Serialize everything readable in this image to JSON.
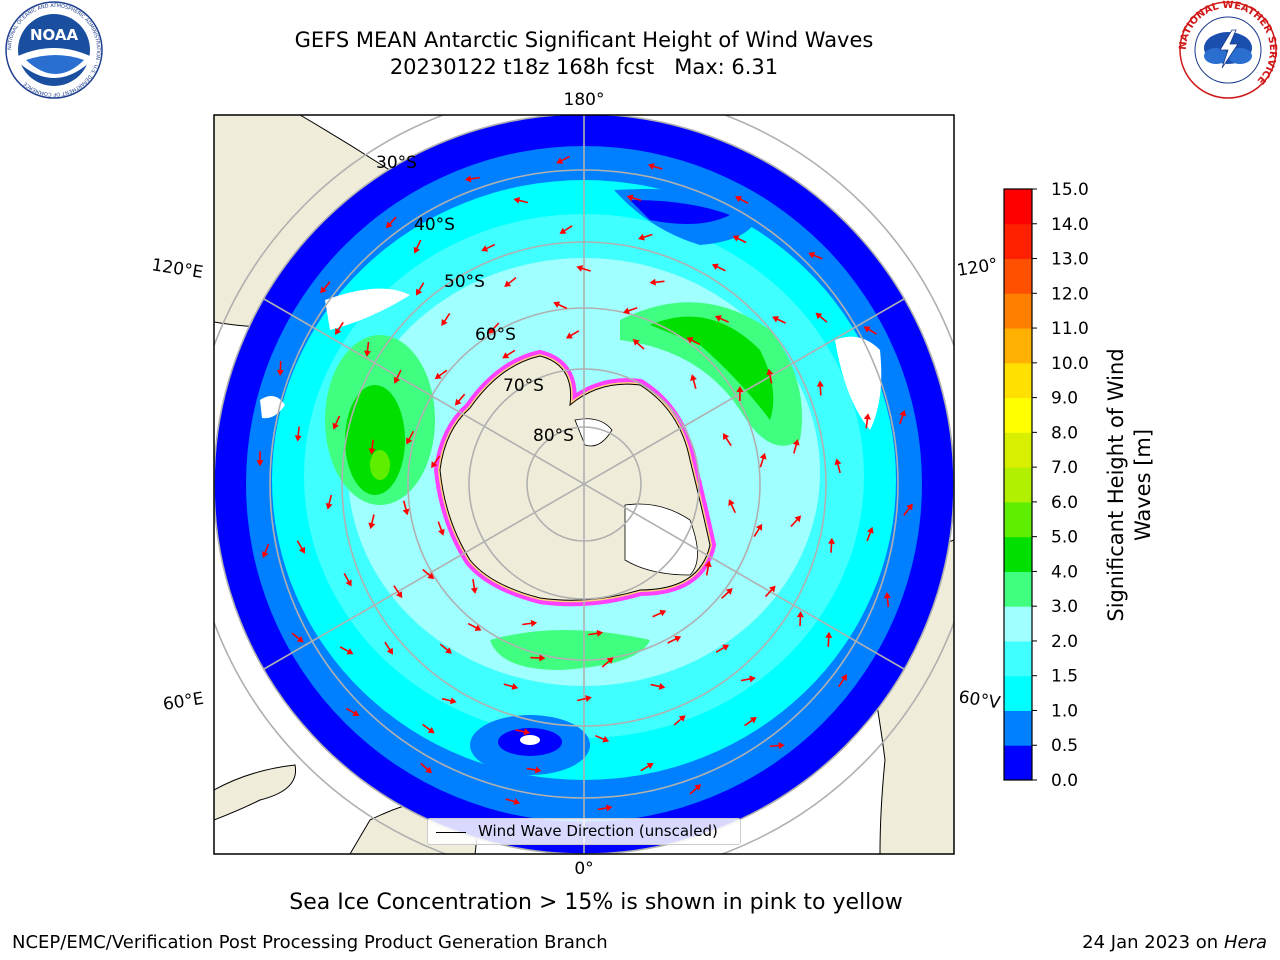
{
  "header": {
    "title_line1": "GEFS MEAN Antarctic Significant Height of Wind Waves",
    "title_line2": "20230122 t18z 168h fcst   Max: 6.31"
  },
  "logos": {
    "left": {
      "icon": "noaa-logo",
      "text": "NOAA",
      "ring_text": "NATIONAL OCEANIC AND ATMOSPHERIC ADMINISTRATION · U.S. DEPARTMENT OF COMMERCE"
    },
    "right": {
      "icon": "nws-logo",
      "ring_text": "NATIONAL WEATHER SERVICE"
    }
  },
  "map": {
    "projection": "south-polar-stereographic",
    "meridian_labels": {
      "top": "180°",
      "bottom": "0°",
      "upper_left": "120°E",
      "lower_left": "60°E",
      "upper_right": "120°",
      "lower_right": "60°V"
    },
    "latitude_labels": [
      "30°S",
      "40°S",
      "50°S",
      "60°S",
      "70°S",
      "80°S"
    ],
    "colors": {
      "land": "#efedd9",
      "ocean_low": "#0000ff",
      "ice": "#ffffff",
      "arrow": "#ff0000"
    }
  },
  "legend": {
    "label": "Wind Wave Direction (unscaled)"
  },
  "colorbar": {
    "label_line1": "Significant Height of Wind",
    "label_line2": "Waves [m]",
    "ticks": [
      "0.0",
      "0.5",
      "1.0",
      "1.5",
      "2.0",
      "3.0",
      "4.0",
      "5.0",
      "6.0",
      "7.0",
      "8.0",
      "9.0",
      "10.0",
      "11.0",
      "12.0",
      "13.0",
      "14.0",
      "15.0"
    ],
    "colors": [
      "#0000ff",
      "#0080ff",
      "#00ffff",
      "#40ffff",
      "#a0ffff",
      "#40ff80",
      "#00e000",
      "#60ee00",
      "#b0f000",
      "#d8f000",
      "#ffff00",
      "#ffe000",
      "#ffb000",
      "#ff8000",
      "#ff5000",
      "#ff2000",
      "#ff0000"
    ]
  },
  "note": "Sea Ice Concentration > 15% is shown in pink to yellow",
  "footer": {
    "left": "NCEP/EMC/Verification Post Processing Product Generation Branch",
    "date": "24 Jan 2023 on ",
    "host": "Hera"
  }
}
